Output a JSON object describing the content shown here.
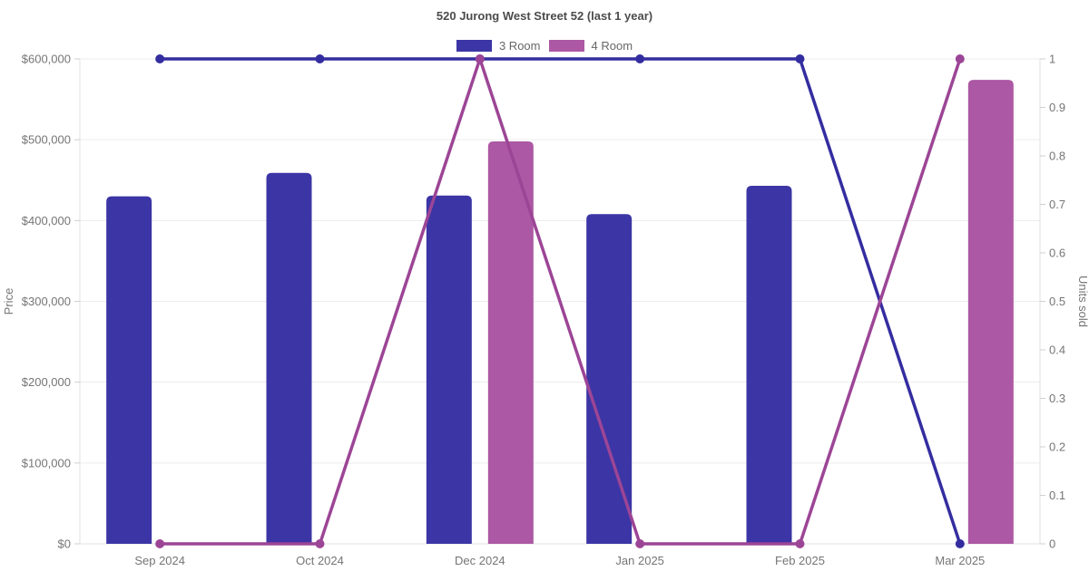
{
  "chart_data": {
    "type": "bar+line",
    "title": "520 Jurong West Street 52 (last 1 year)",
    "categories": [
      "Sep 2024",
      "Oct 2024",
      "Dec 2024",
      "Jan 2025",
      "Feb 2025",
      "Mar 2025"
    ],
    "axes": {
      "left": {
        "label": "Price",
        "min": 0,
        "max": 600000,
        "tick_step": 100000,
        "tick_labels": [
          "$0",
          "$100,000",
          "$200,000",
          "$300,000",
          "$400,000",
          "$500,000",
          "$600,000"
        ]
      },
      "right": {
        "label": "Units sold",
        "min": 0,
        "max": 1,
        "tick_step": 0.1,
        "tick_labels": [
          "0",
          "0.1",
          "0.2",
          "0.3",
          "0.4",
          "0.5",
          "0.6",
          "0.7",
          "0.8",
          "0.9",
          "1"
        ]
      }
    },
    "legend": {
      "position": "top",
      "entries": [
        "3 Room",
        "4 Room"
      ]
    },
    "grid": true,
    "series": [
      {
        "name": "3 Room",
        "bar_color": "#3C35A5",
        "line_color": "#342DA0",
        "bars_price": [
          430000,
          459000,
          431000,
          408000,
          443000,
          null
        ],
        "line_units_sold": [
          1,
          1,
          1,
          1,
          1,
          0
        ]
      },
      {
        "name": "4 Room",
        "bar_color": "#AC58A4",
        "line_color": "#9C4596",
        "bars_price": [
          null,
          null,
          498000,
          null,
          null,
          574000
        ],
        "line_units_sold": [
          0,
          0,
          1,
          0,
          0,
          1
        ]
      }
    ]
  }
}
